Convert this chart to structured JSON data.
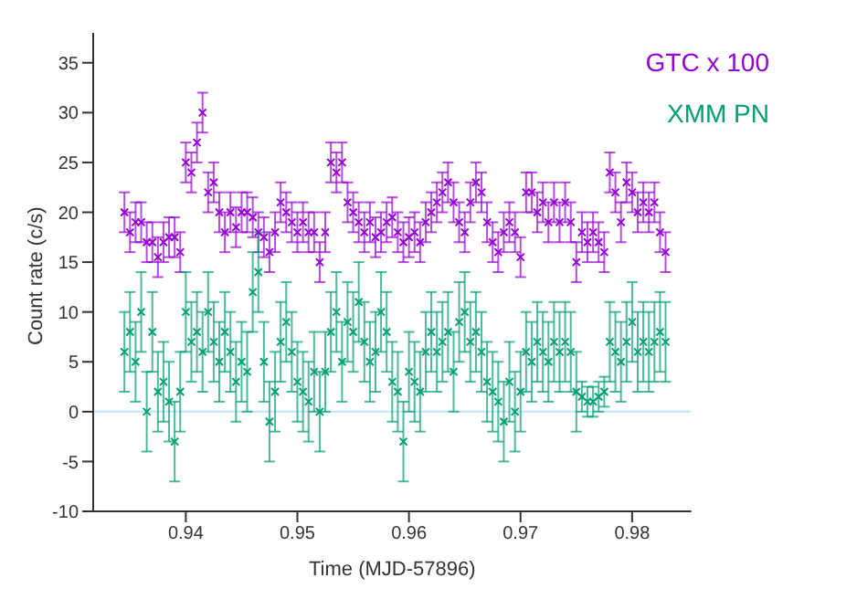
{
  "chart_data": {
    "type": "scatter",
    "xlabel": "Time (MJD-57896)",
    "ylabel": "Count rate (c/s)",
    "xlim": [
      0.9317,
      0.9853
    ],
    "ylim": [
      -10,
      38
    ],
    "xticks": [
      0.94,
      0.95,
      0.96,
      0.97,
      0.98
    ],
    "yticks": [
      -10,
      -5,
      0,
      5,
      10,
      15,
      20,
      25,
      30,
      35
    ],
    "legend": "top right",
    "marker": "cross",
    "grid": false,
    "ref_lines": [
      {
        "axis": "y",
        "value": 0,
        "color": "#bfe3f2"
      }
    ],
    "x": [
      0.9345,
      0.935,
      0.9355,
      0.936,
      0.9365,
      0.937,
      0.9375,
      0.938,
      0.9385,
      0.939,
      0.9395,
      0.94,
      0.9405,
      0.941,
      0.9415,
      0.942,
      0.9425,
      0.943,
      0.9435,
      0.944,
      0.9445,
      0.945,
      0.9455,
      0.946,
      0.9465,
      0.947,
      0.9475,
      0.948,
      0.9485,
      0.949,
      0.9495,
      0.95,
      0.9505,
      0.951,
      0.9515,
      0.952,
      0.9525,
      0.953,
      0.9535,
      0.954,
      0.9545,
      0.955,
      0.9555,
      0.956,
      0.9565,
      0.957,
      0.9575,
      0.958,
      0.9585,
      0.959,
      0.9595,
      0.96,
      0.9605,
      0.961,
      0.9615,
      0.962,
      0.9625,
      0.963,
      0.9635,
      0.964,
      0.9645,
      0.965,
      0.9655,
      0.966,
      0.9665,
      0.967,
      0.9675,
      0.968,
      0.9685,
      0.969,
      0.9695,
      0.97,
      0.9705,
      0.971,
      0.9715,
      0.972,
      0.9725,
      0.973,
      0.9735,
      0.974,
      0.9745,
      0.975,
      0.9755,
      0.976,
      0.9765,
      0.977,
      0.9775,
      0.978,
      0.9785,
      0.979,
      0.9795,
      0.98,
      0.9805,
      0.981,
      0.9815,
      0.982,
      0.9825,
      0.983
    ],
    "series": [
      {
        "name": "GTC x 100",
        "color": "#9400d3",
        "values": [
          20,
          18,
          19,
          19,
          17,
          17,
          15.5,
          17,
          17.5,
          17.5,
          16,
          25,
          24,
          27,
          30,
          22,
          23,
          20,
          18,
          20,
          18.5,
          20,
          20,
          19.5,
          18,
          17.5,
          16,
          18,
          21,
          20,
          19,
          18,
          19,
          18,
          18,
          15,
          18,
          25,
          24,
          25,
          21,
          20,
          19,
          18,
          19,
          17.5,
          18,
          19,
          19.5,
          18,
          17,
          17.5,
          18,
          17,
          19,
          20,
          21,
          22,
          23,
          21,
          19,
          18,
          21,
          23,
          22,
          19,
          17,
          16,
          18,
          19,
          18,
          15.5,
          22,
          22,
          20,
          21,
          19,
          21,
          19,
          21,
          19,
          15,
          18,
          17,
          18,
          17,
          16,
          24,
          22,
          19,
          23,
          22,
          20,
          21,
          20,
          21,
          18,
          16
        ],
        "errors": [
          2,
          2,
          2,
          2,
          2,
          2,
          2,
          2,
          2,
          2,
          2,
          2,
          2,
          2,
          2,
          2,
          2,
          2,
          2,
          2,
          2,
          2,
          2,
          2,
          2,
          2,
          2,
          2,
          2,
          2,
          2,
          2,
          2,
          2,
          2,
          2,
          2,
          2,
          2,
          2,
          2,
          2,
          2,
          2,
          2,
          2,
          2,
          2,
          2,
          2,
          2,
          2,
          2,
          2,
          2,
          2,
          2,
          2,
          2,
          2,
          2,
          2,
          2,
          2,
          2,
          2,
          2,
          2,
          2,
          2,
          2,
          2,
          2,
          2,
          2,
          2,
          2,
          2,
          2,
          2,
          2,
          2,
          2,
          2,
          2,
          2,
          2,
          2,
          2,
          2,
          2,
          2,
          2,
          2,
          2,
          2,
          2,
          2
        ]
      },
      {
        "name": "XMM PN",
        "color": "#009e73",
        "values": [
          6,
          8,
          5,
          10,
          0,
          8,
          2,
          3,
          1,
          -3,
          2,
          10,
          7,
          8,
          6,
          10,
          7,
          5,
          8,
          6,
          3,
          5,
          4,
          12,
          14,
          5,
          -1,
          2,
          7,
          9,
          6,
          3,
          2,
          1,
          4,
          0,
          4,
          8,
          10,
          5,
          9,
          8,
          11,
          7,
          5,
          6,
          10,
          8,
          3,
          2,
          -3,
          4,
          3,
          2,
          6,
          8,
          6,
          7,
          8,
          4,
          9,
          10,
          7,
          8,
          6,
          3,
          2,
          1,
          -1,
          3,
          0,
          2,
          6,
          5,
          7,
          6,
          5,
          7,
          6,
          7,
          6,
          2,
          1.5,
          1,
          1,
          1.5,
          2,
          7,
          6,
          5,
          7,
          9,
          6,
          7,
          6,
          7,
          8,
          7
        ],
        "errors": [
          4,
          4,
          4,
          4,
          4,
          4,
          4,
          4,
          4,
          4,
          4,
          4,
          4,
          4,
          4,
          4,
          4,
          4,
          4,
          4,
          4,
          4,
          4,
          4,
          4,
          4,
          4,
          4,
          4,
          4,
          4,
          4,
          4,
          4,
          4,
          4,
          4,
          4,
          4,
          4,
          4,
          4,
          4,
          4,
          4,
          4,
          4,
          4,
          4,
          4,
          4,
          4,
          4,
          4,
          4,
          4,
          4,
          4,
          4,
          4,
          4,
          4,
          4,
          4,
          4,
          4,
          4,
          4,
          4,
          4,
          4,
          4,
          4,
          4,
          4,
          4,
          4,
          4,
          4,
          4,
          4,
          4,
          1.5,
          1.5,
          1.5,
          1.5,
          1.5,
          4,
          4,
          4,
          4,
          4,
          4,
          4,
          4,
          4,
          4,
          4
        ]
      }
    ]
  }
}
